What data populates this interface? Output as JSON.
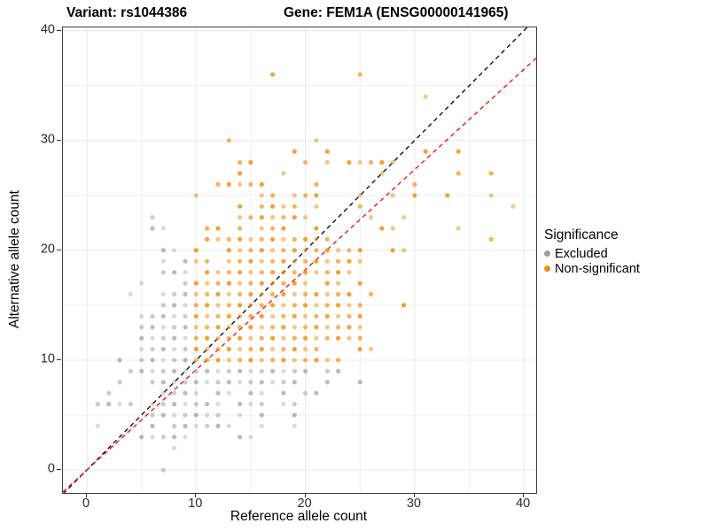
{
  "header": {
    "variant_title": "Variant: rs1044386",
    "gene_title": "Gene: FEM1A (ENSG00000141965)"
  },
  "axes": {
    "x_label": "Reference allele count",
    "y_label": "Alternative allele count",
    "x_ticks": [
      0,
      10,
      20,
      30,
      40
    ],
    "y_ticks": [
      0,
      10,
      20,
      30,
      40
    ],
    "x_domain": [
      -2.19,
      41.12
    ],
    "y_domain": [
      -2.09,
      40.29
    ],
    "grid_step": 5
  },
  "legend": {
    "title": "Significance",
    "items": [
      {
        "label": "Excluded",
        "color": "#9b9b9e"
      },
      {
        "label": "Non-significant",
        "color": "#f28c0c"
      }
    ]
  },
  "colors": {
    "grid": "#ececec",
    "panel_border": "#3c3c3c",
    "excluded_dot": "#8e8e93",
    "nonsignificant_dot": "#f28c0c",
    "identity_line": "#000000",
    "ratio_line": "#ff0000"
  },
  "chart_data": {
    "type": "scatter",
    "title": "Allele-specific expression counts for rs1044386 in FEM1A (ENSG00000141965)",
    "xlabel": "Reference allele count",
    "ylabel": "Alternative allele count",
    "xlim": [
      -2.19,
      41.12
    ],
    "ylim": [
      -2.09,
      40.29
    ],
    "grid": "on",
    "legend_position": "right",
    "point_radius_px": 2.6,
    "series": [
      {
        "name": "Non-significant",
        "color": "#f28c0c",
        "rows_y_to_xs": {
          "36": [
            17,
            25
          ],
          "34": [
            31
          ],
          "30": [
            13,
            21
          ],
          "29": [
            19,
            22,
            31,
            34
          ],
          "28": [
            14,
            15,
            20,
            22,
            24,
            25,
            26,
            27,
            28
          ],
          "27": [
            14,
            18,
            27,
            34,
            37
          ],
          "26": [
            12,
            13,
            14,
            15,
            16,
            21,
            30
          ],
          "25": [
            10,
            16,
            17,
            19,
            20,
            21,
            25,
            28,
            30,
            33,
            37
          ],
          "24": [
            14,
            16,
            17,
            18,
            19,
            21,
            25,
            39
          ],
          "23": [
            14,
            15,
            16,
            17,
            18,
            19,
            20,
            26,
            29
          ],
          "22": [
            11,
            12,
            14,
            16,
            17,
            18,
            21,
            27,
            28,
            34
          ],
          "21": [
            11,
            12,
            13,
            14,
            15,
            16,
            17,
            18,
            19,
            20,
            21,
            22,
            37
          ],
          "20": [
            10,
            13,
            14,
            15,
            16,
            17,
            18,
            19,
            20,
            21,
            22,
            23,
            24,
            25,
            28,
            29
          ],
          "19": [
            10,
            11,
            13,
            14,
            15,
            16,
            17,
            18,
            19,
            20,
            21,
            22,
            23,
            24,
            25
          ],
          "18": [
            11,
            12,
            13,
            14,
            15,
            16,
            17,
            18,
            19,
            20,
            21,
            22,
            23,
            24
          ],
          "17": [
            10,
            11,
            12,
            13,
            14,
            15,
            16,
            17,
            18,
            19,
            20,
            22,
            23,
            25
          ],
          "16": [
            10,
            11,
            12,
            13,
            14,
            15,
            16,
            17,
            18,
            19,
            20,
            21,
            22,
            23,
            24,
            26
          ],
          "15": [
            10,
            11,
            12,
            13,
            14,
            15,
            16,
            17,
            18,
            19,
            20,
            21,
            22,
            23,
            24,
            25,
            29
          ],
          "14": [
            10,
            11,
            12,
            13,
            14,
            15,
            16,
            17,
            18,
            19,
            20,
            21,
            22,
            23,
            24,
            25
          ],
          "13": [
            10,
            11,
            12,
            13,
            14,
            15,
            16,
            17,
            18,
            19,
            20,
            21,
            22,
            23,
            24,
            25
          ],
          "12": [
            10,
            11,
            12,
            13,
            14,
            15,
            16,
            17,
            18,
            19,
            20,
            21,
            22,
            23,
            24,
            25
          ],
          "11": [
            10,
            11,
            12,
            13,
            14,
            15,
            16,
            17,
            18,
            19,
            20,
            21,
            25,
            26
          ],
          "10": [
            10,
            11,
            12,
            13,
            14,
            15,
            16,
            17,
            18,
            19,
            20,
            21,
            22,
            23
          ]
        }
      },
      {
        "name": "Excluded",
        "color": "#8e8e93",
        "rows_y_to_xs": {
          "23": [
            6
          ],
          "22": [
            6,
            7
          ],
          "20": [
            7,
            8
          ],
          "19": [
            7,
            9
          ],
          "18": [
            7,
            8,
            9
          ],
          "17": [
            5,
            9
          ],
          "16": [
            4,
            7,
            8,
            9
          ],
          "15": [
            7,
            8,
            9
          ],
          "14": [
            5,
            6,
            7,
            8,
            9
          ],
          "13": [
            5,
            6,
            7,
            8,
            9
          ],
          "12": [
            5,
            6,
            7,
            8,
            9
          ],
          "11": [
            5,
            6,
            7,
            8,
            9
          ],
          "10": [
            3,
            5,
            6,
            7,
            8,
            9
          ],
          "9": [
            4,
            5,
            6,
            7,
            8,
            9,
            10,
            11,
            12,
            13,
            14,
            15,
            16,
            17,
            18,
            19,
            20,
            22,
            23
          ],
          "8": [
            3,
            6,
            7,
            8,
            9,
            10,
            11,
            12,
            13,
            14,
            15,
            16,
            17,
            18,
            19,
            22,
            25
          ],
          "7": [
            2,
            7,
            8,
            9,
            10,
            12,
            13,
            15,
            16,
            18,
            20,
            21
          ],
          "6": [
            1,
            2,
            3,
            4,
            6,
            7,
            8,
            9,
            10,
            11,
            12,
            14,
            15,
            16,
            18,
            19
          ],
          "5": [
            6,
            7,
            8,
            9,
            10,
            11,
            12,
            14,
            16,
            19
          ],
          "4": [
            1,
            6,
            8,
            9,
            10,
            11,
            12,
            13,
            16,
            19
          ],
          "3": [
            5,
            6,
            7,
            8,
            9,
            14,
            15
          ],
          "2": [
            8
          ],
          "0": [
            7
          ]
        }
      }
    ],
    "lines": [
      {
        "name": "identity",
        "color": "#000000",
        "slope": 1,
        "intercept": 0,
        "style": "dashed"
      },
      {
        "name": "allelic-ratio",
        "color": "#ff0000",
        "slope": 0.912,
        "intercept": 0,
        "style": "dashed"
      }
    ]
  }
}
